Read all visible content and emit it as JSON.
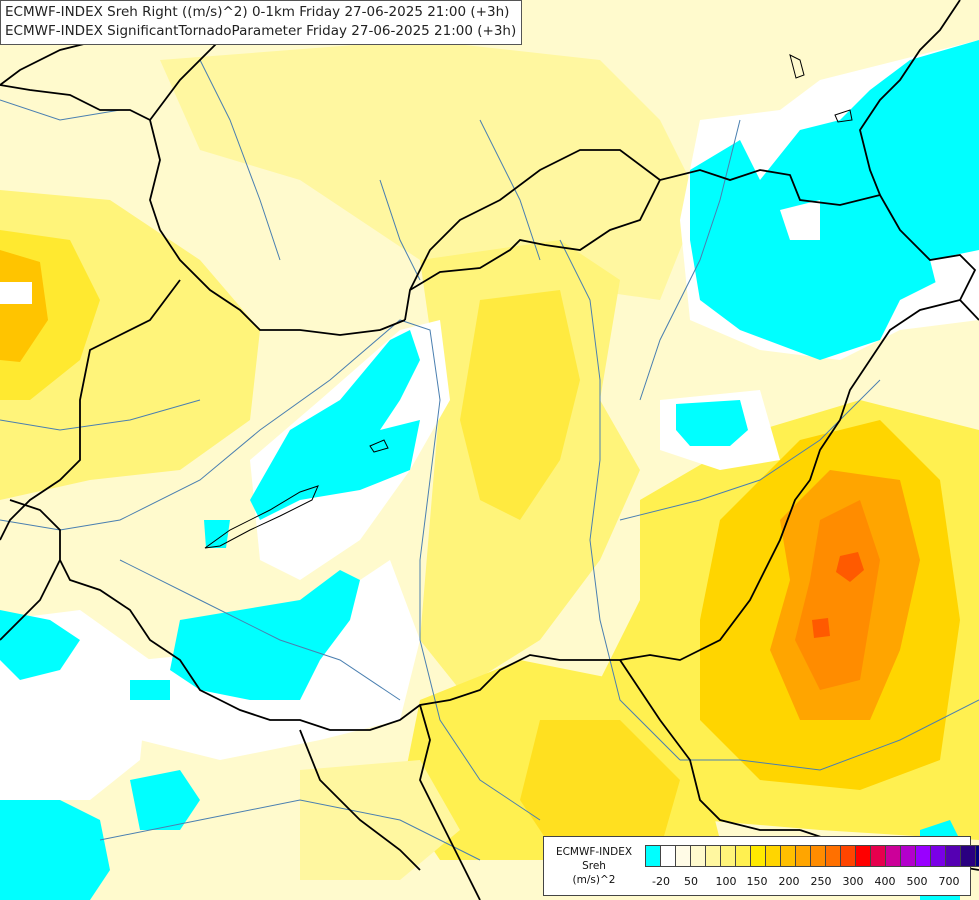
{
  "header": {
    "line1": "ECMWF-INDEX Sreh Right ((m/s)^2) 0-1km Friday 27-06-2025 21:00 (+3h)",
    "line2": "ECMWF-INDEX SignificantTornadoParameter Friday 27-06-2025 21:00 (+3h)"
  },
  "legend": {
    "title_line1": "ECMWF-INDEX",
    "title_line2": "Sreh",
    "title_line3": "(m/s)^2",
    "swatches": [
      "#00ffff",
      "#ffffff",
      "#fffbe6",
      "#fffacd",
      "#fff7a0",
      "#fff47a",
      "#fff050",
      "#ffea00",
      "#ffd500",
      "#ffbf00",
      "#ffa500",
      "#ff8c00",
      "#ff7000",
      "#ff4500",
      "#ff0000",
      "#e6004d",
      "#cc0099",
      "#b300cc",
      "#9900ff",
      "#7a00e6",
      "#5500b3",
      "#2a0080",
      "#000080"
    ],
    "labels": [
      "-20",
      "50",
      "100",
      "150",
      "200",
      "250",
      "300",
      "400",
      "500",
      "700"
    ]
  },
  "colors": {
    "cyan": "#00ffff",
    "white": "#ffffff",
    "cream": "#fffacd",
    "pale_yellow": "#fff7a0",
    "yellow": "#fff050",
    "gold": "#ffd500",
    "orange": "#ffa500",
    "dark_orange": "#ff7000",
    "border_line": "#000000",
    "river_line": "#4a7fb0"
  }
}
